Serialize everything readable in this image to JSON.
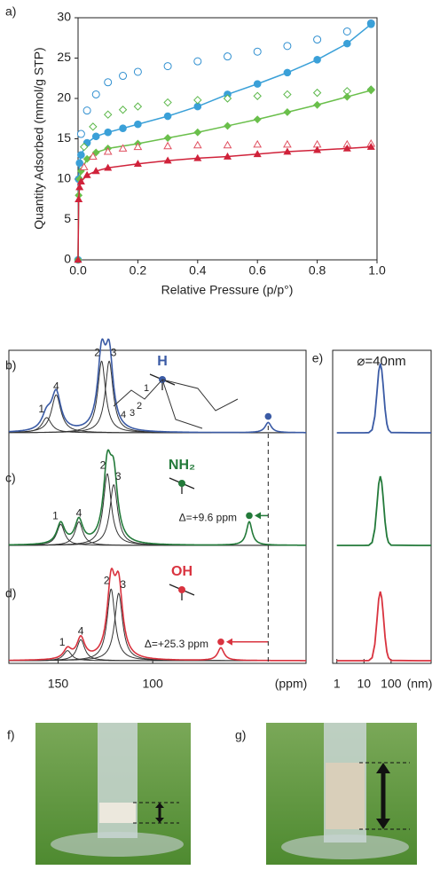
{
  "chart_data": [
    {
      "type": "scatter",
      "label": "a)",
      "x_label": "Relative Pressure (p/p°)",
      "y_label": "Quantity Adsorbed (mmol/g STP)",
      "xlim": [
        0,
        1
      ],
      "ylim": [
        0,
        30
      ],
      "xticks": [
        {
          "value": 0,
          "label": "0.0"
        },
        0.2,
        0.4,
        0.6,
        0.8,
        {
          "value": 1,
          "label": "1.0"
        }
      ],
      "yticks": [
        0,
        5,
        10,
        15,
        20,
        25,
        30
      ],
      "series": [
        {
          "color": "#2f8fd0",
          "marker": "circle",
          "filled": false,
          "x": [
            0.01,
            0.03,
            0.06,
            0.1,
            0.15,
            0.2,
            0.3,
            0.4,
            0.5,
            0.6,
            0.7,
            0.8,
            0.9,
            0.98
          ],
          "values": [
            15.6,
            18.5,
            20.5,
            22,
            22.8,
            23.3,
            24,
            24.6,
            25.2,
            25.8,
            26.5,
            27.3,
            28.3,
            29.3
          ]
        },
        {
          "color": "#3aa0d8",
          "marker": "circle",
          "filled": true,
          "x": [
            0,
            0.002,
            0.005,
            0.01,
            0.03,
            0.06,
            0.1,
            0.15,
            0.2,
            0.3,
            0.4,
            0.5,
            0.6,
            0.7,
            0.8,
            0.9,
            0.98
          ],
          "values": [
            0,
            10,
            12,
            13,
            14.5,
            15.3,
            15.8,
            16.3,
            16.8,
            17.8,
            19,
            20.5,
            21.8,
            23.2,
            24.8,
            26.8,
            29.2
          ]
        },
        {
          "color": "#5cb84a",
          "marker": "diamond",
          "filled": false,
          "x": [
            0.02,
            0.05,
            0.1,
            0.15,
            0.2,
            0.3,
            0.4,
            0.5,
            0.6,
            0.7,
            0.8,
            0.9,
            0.98
          ],
          "values": [
            14,
            16.5,
            18,
            18.6,
            19,
            19.5,
            19.8,
            20,
            20.3,
            20.5,
            20.7,
            20.9,
            21.1
          ]
        },
        {
          "color": "#6abf4b",
          "marker": "diamond",
          "filled": true,
          "x": [
            0,
            0.002,
            0.005,
            0.01,
            0.03,
            0.06,
            0.1,
            0.2,
            0.3,
            0.4,
            0.5,
            0.6,
            0.7,
            0.8,
            0.9,
            0.98
          ],
          "values": [
            0,
            8,
            10,
            11,
            12.5,
            13.3,
            13.8,
            14.4,
            15.1,
            15.8,
            16.6,
            17.4,
            18.3,
            19.2,
            20.2,
            21
          ]
        },
        {
          "color": "#e05060",
          "marker": "triangle",
          "filled": false,
          "x": [
            0.02,
            0.05,
            0.1,
            0.15,
            0.2,
            0.3,
            0.4,
            0.5,
            0.6,
            0.7,
            0.8,
            0.9,
            0.98
          ],
          "values": [
            11.5,
            12.8,
            13.4,
            13.8,
            14,
            14.1,
            14.2,
            14.2,
            14.3,
            14.3,
            14.3,
            14.3,
            14.4
          ]
        },
        {
          "color": "#d0223a",
          "marker": "triangle",
          "filled": true,
          "x": [
            0,
            0.002,
            0.005,
            0.01,
            0.03,
            0.06,
            0.1,
            0.2,
            0.3,
            0.4,
            0.5,
            0.6,
            0.7,
            0.8,
            0.9,
            0.98
          ],
          "values": [
            0,
            7.5,
            9,
            9.7,
            10.5,
            11,
            11.4,
            11.9,
            12.3,
            12.6,
            12.8,
            13.1,
            13.4,
            13.6,
            13.8,
            14
          ]
        }
      ]
    },
    {
      "type": "spectrum",
      "x_label": "(ppm)",
      "xlim": [
        176,
        19
      ],
      "xticks": [
        150,
        100
      ],
      "series": [
        {
          "label": "b)",
          "name": "H",
          "color": "#3b5ba5",
          "structure_labels": [
            "1",
            "2",
            "3",
            "4"
          ],
          "peaks": [
            {
              "label": "1",
              "ppm": 156,
              "height": 18,
              "width": 3
            },
            {
              "label": "4",
              "ppm": 151,
              "height": 45,
              "width": 3
            },
            {
              "label": "2",
              "ppm": 127,
              "height": 85,
              "width": 2.5
            },
            {
              "label": "3",
              "ppm": 123,
              "height": 85,
              "width": 2.5
            },
            {
              "ppm": 39,
              "height": 12,
              "width": 2
            }
          ]
        },
        {
          "label": "c)",
          "name": "NH₂",
          "color": "#237a3a",
          "annotation": "Δ=+9.6 ppm",
          "peaks": [
            {
              "label": "1",
              "ppm": 148.6,
              "height": 25,
              "width": 2.5
            },
            {
              "label": "4",
              "ppm": 139,
              "height": 28,
              "width": 2.5
            },
            {
              "label": "2",
              "ppm": 124,
              "height": 85,
              "width": 2.5
            },
            {
              "label": "3",
              "ppm": 120.6,
              "height": 72,
              "width": 2.5
            },
            {
              "ppm": 49,
              "height": 28,
              "width": 1.8
            }
          ]
        },
        {
          "label": "d)",
          "name": "OH",
          "color": "#d9333f",
          "annotation": "Δ=+25.3 ppm",
          "peaks": [
            {
              "label": "1",
              "ppm": 145,
              "height": 12,
              "width": 2.5
            },
            {
              "label": "4",
              "ppm": 138,
              "height": 25,
              "width": 2.5
            },
            {
              "label": "2",
              "ppm": 122,
              "height": 85,
              "width": 2.5
            },
            {
              "label": "3",
              "ppm": 118,
              "height": 80,
              "width": 2.5
            },
            {
              "ppm": 64,
              "height": 15,
              "width": 2
            }
          ]
        }
      ]
    },
    {
      "type": "line",
      "label": "e)",
      "title": "⌀=40nm",
      "x_label": "(nm)",
      "log_x": true,
      "xlim": [
        0.7,
        3000
      ],
      "xticks": [
        1,
        10,
        100
      ],
      "series": [
        {
          "color": "#3b5ba5",
          "x": [
            1,
            10,
            15,
            20,
            25,
            30,
            35,
            40,
            45,
            50,
            60,
            70,
            80,
            100,
            1000,
            3000
          ],
          "values": [
            0,
            0,
            0.2,
            4.3,
            23.6,
            58,
            89,
            100,
            91,
            72,
            34,
            13,
            4.3,
            0.4,
            0,
            0
          ]
        },
        {
          "color": "#237a3a",
          "x": [
            1,
            10,
            15,
            20,
            25,
            30,
            35,
            40,
            45,
            50,
            60,
            70,
            80,
            100,
            1000,
            3000
          ],
          "values": [
            0,
            0,
            0.2,
            4.3,
            23.6,
            58,
            89,
            100,
            91,
            72,
            34,
            13,
            4.3,
            0.4,
            0,
            0
          ]
        },
        {
          "color": "#d9333f",
          "x": [
            1,
            10,
            15,
            20,
            25,
            30,
            35,
            40,
            45,
            50,
            60,
            70,
            80,
            100,
            1000,
            3000
          ],
          "values": [
            0,
            0,
            0.2,
            4.3,
            23.6,
            58,
            89,
            100,
            91,
            72,
            34,
            13,
            4.3,
            0.4,
            0,
            0
          ]
        }
      ]
    }
  ],
  "photos": {
    "f": "f)",
    "g": "g)"
  }
}
